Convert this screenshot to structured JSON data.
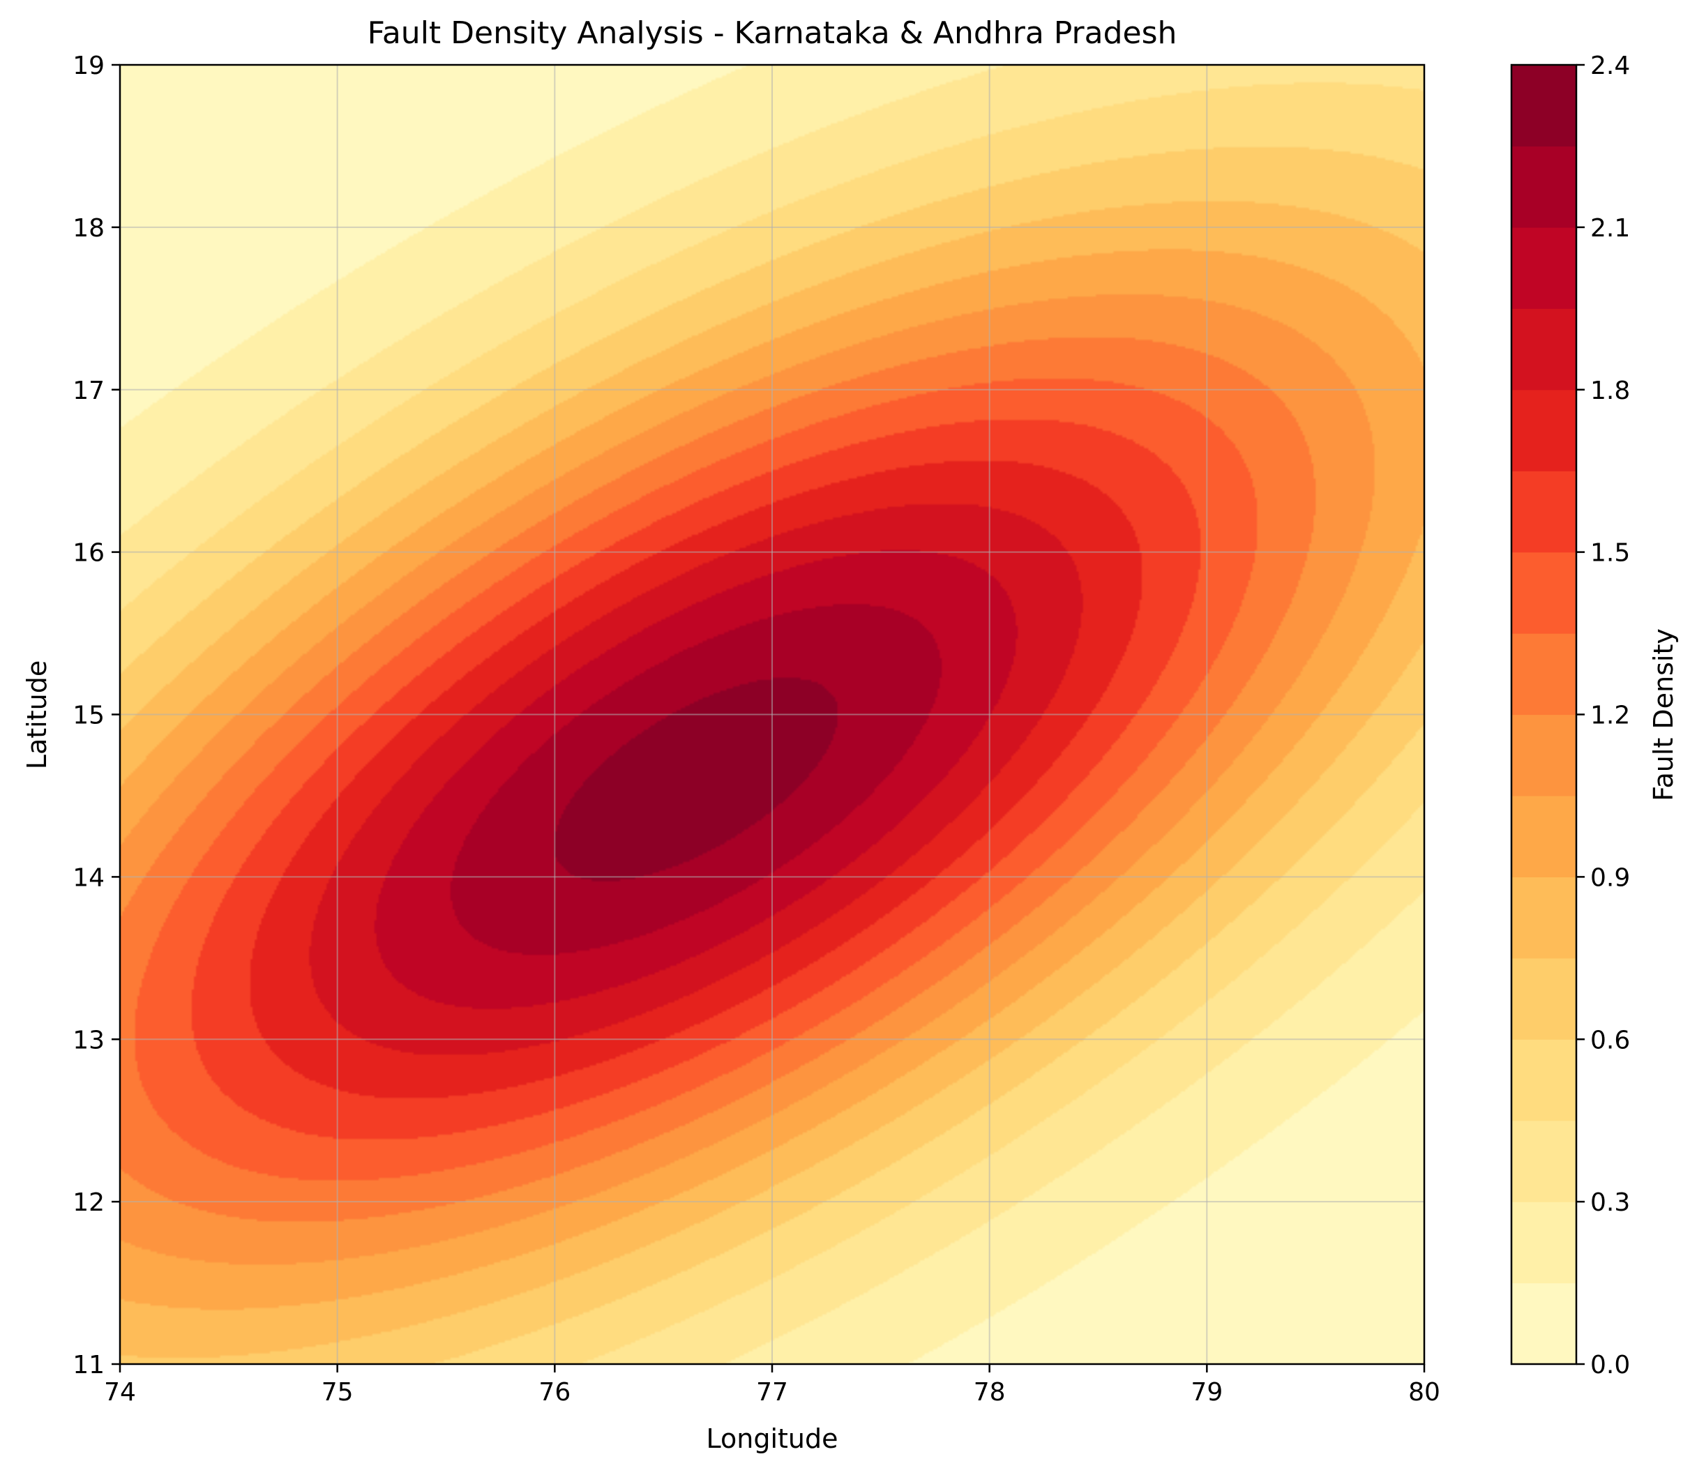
{
  "chart_data": {
    "type": "contourf",
    "title": "Fault Density Analysis - Karnataka & Andhra Pradesh",
    "xlabel": "Longitude",
    "ylabel": "Latitude",
    "xlim": [
      74,
      80
    ],
    "ylim": [
      11,
      19
    ],
    "xticks": [
      "74",
      "75",
      "76",
      "77",
      "78",
      "79",
      "80"
    ],
    "yticks": [
      "11",
      "12",
      "13",
      "14",
      "15",
      "16",
      "17",
      "18",
      "19"
    ],
    "grid": true,
    "colormap": "YlOrRd",
    "colorbar": {
      "label": "Fault Density",
      "range": [
        0.0,
        2.4
      ],
      "ticks": [
        "0.0",
        "0.3",
        "0.6",
        "0.9",
        "1.2",
        "1.5",
        "1.8",
        "2.1",
        "2.4"
      ],
      "levels": [
        0.0,
        0.15,
        0.3,
        0.45,
        0.6,
        0.75,
        0.9,
        1.05,
        1.2,
        1.35,
        1.5,
        1.65,
        1.8,
        1.95,
        2.1,
        2.25,
        2.4
      ],
      "band_colors": [
        "#fff8c0",
        "#fff0a8",
        "#ffe693",
        "#ffdc7f",
        "#fecd6a",
        "#febc58",
        "#fea848",
        "#fd943f",
        "#fd7a36",
        "#fc5d2e",
        "#f43d25",
        "#e5221d",
        "#d3121f",
        "#c00525",
        "#a80026",
        "#8d0026"
      ]
    },
    "density_field": {
      "peak_center": [
        76.65,
        14.6
      ],
      "peak_value": 2.33,
      "major_axis_direction_deg": 43,
      "sigma_major_deg": 3.1,
      "sigma_minor_deg": 1.45
    }
  }
}
